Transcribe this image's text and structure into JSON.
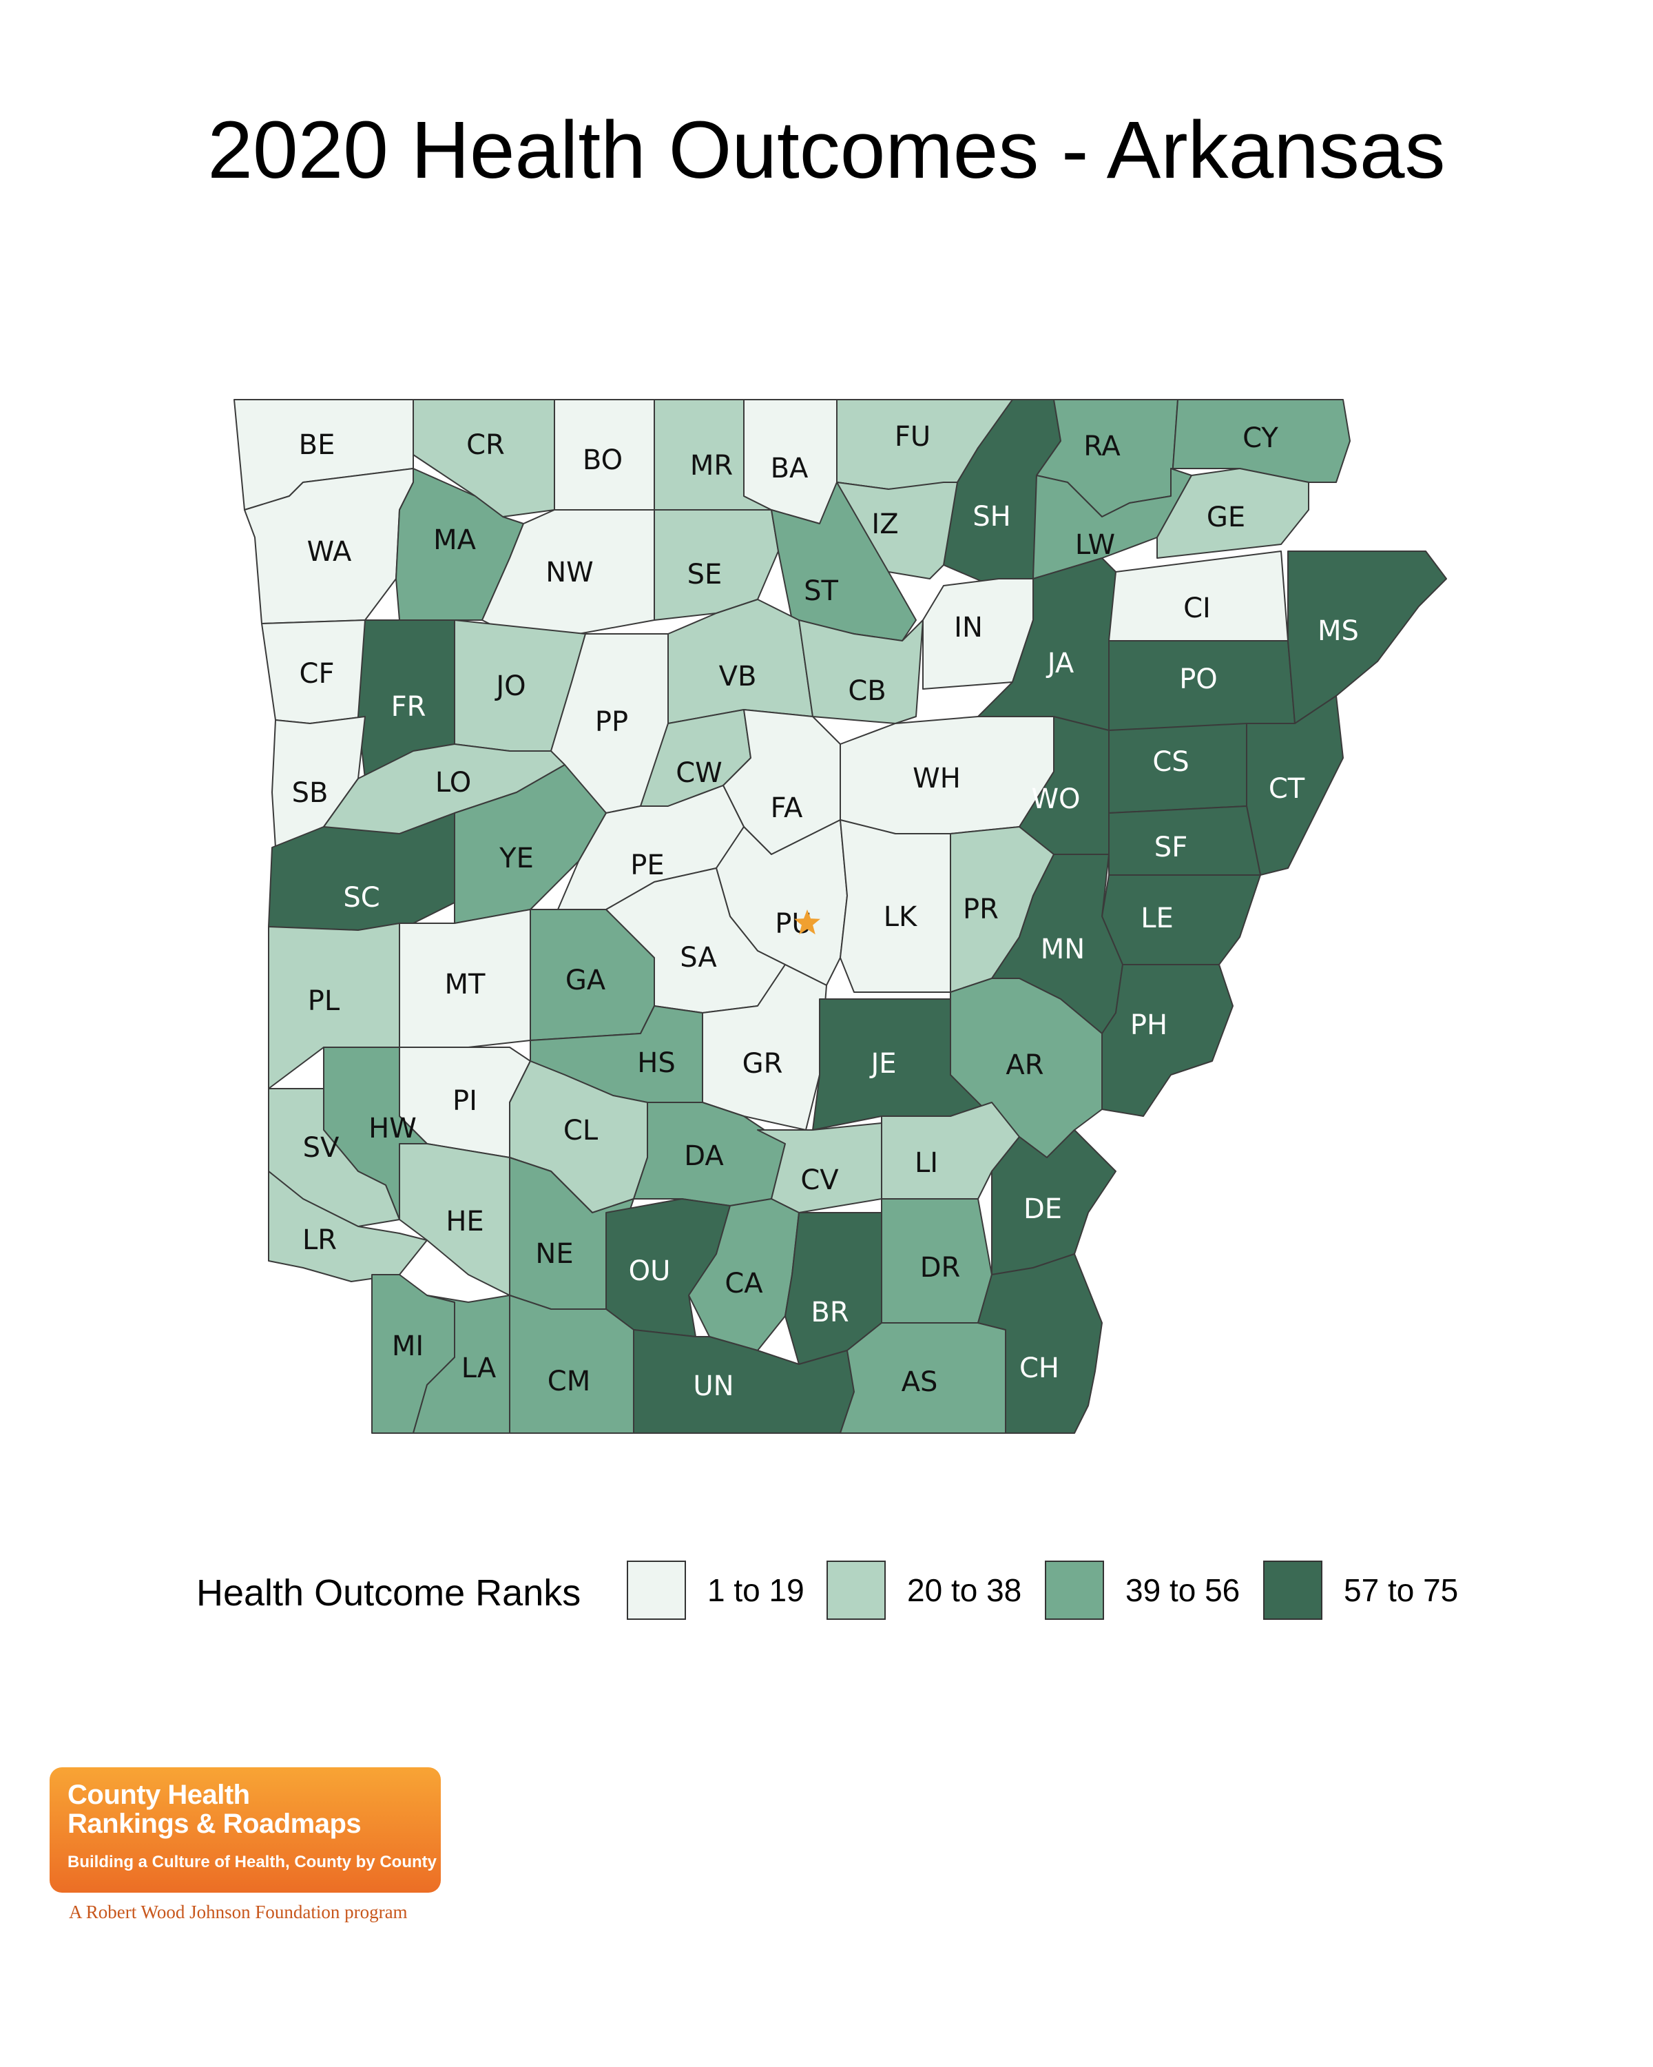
{
  "title": "2020 Health Outcomes - Arkansas",
  "colors": {
    "rank_1_19": "#eef5f1",
    "rank_20_38": "#b3d4c2",
    "rank_39_56": "#74ab90",
    "rank_57_75": "#3b6a54"
  },
  "legend": {
    "title": "Health Outcome Ranks",
    "items": [
      {
        "label": "1 to 19",
        "color": "#eef5f1"
      },
      {
        "label": "20 to 38",
        "color": "#b3d4c2"
      },
      {
        "label": "39 to 56",
        "color": "#74ab90"
      },
      {
        "label": "57 to 75",
        "color": "#3b6a54"
      }
    ]
  },
  "capital_marker": {
    "county": "PU",
    "icon": "star-icon",
    "color": "#f0a030"
  },
  "counties": [
    {
      "code": "BE",
      "category": 1
    },
    {
      "code": "CR",
      "category": 2
    },
    {
      "code": "BO",
      "category": 1
    },
    {
      "code": "MR",
      "category": 2
    },
    {
      "code": "BA",
      "category": 1
    },
    {
      "code": "FU",
      "category": 2
    },
    {
      "code": "SH",
      "category": 4
    },
    {
      "code": "RA",
      "category": 3
    },
    {
      "code": "CY",
      "category": 3
    },
    {
      "code": "WA",
      "category": 1
    },
    {
      "code": "MA",
      "category": 3
    },
    {
      "code": "NW",
      "category": 1
    },
    {
      "code": "SE",
      "category": 2
    },
    {
      "code": "ST",
      "category": 3
    },
    {
      "code": "IZ",
      "category": 2
    },
    {
      "code": "LW",
      "category": 3
    },
    {
      "code": "GE",
      "category": 2
    },
    {
      "code": "CF",
      "category": 1
    },
    {
      "code": "FR",
      "category": 4
    },
    {
      "code": "JO",
      "category": 2
    },
    {
      "code": "PP",
      "category": 1
    },
    {
      "code": "VB",
      "category": 2
    },
    {
      "code": "CB",
      "category": 2
    },
    {
      "code": "IN",
      "category": 1
    },
    {
      "code": "JA",
      "category": 4
    },
    {
      "code": "CI",
      "category": 1
    },
    {
      "code": "PO",
      "category": 4
    },
    {
      "code": "MS",
      "category": 4
    },
    {
      "code": "SB",
      "category": 1
    },
    {
      "code": "LO",
      "category": 2
    },
    {
      "code": "CW",
      "category": 2
    },
    {
      "code": "FA",
      "category": 1
    },
    {
      "code": "WH",
      "category": 1
    },
    {
      "code": "WO",
      "category": 4
    },
    {
      "code": "CS",
      "category": 4
    },
    {
      "code": "CT",
      "category": 4
    },
    {
      "code": "SC",
      "category": 4
    },
    {
      "code": "YE",
      "category": 3
    },
    {
      "code": "PE",
      "category": 1
    },
    {
      "code": "PU",
      "category": 1
    },
    {
      "code": "LK",
      "category": 1
    },
    {
      "code": "PR",
      "category": 2
    },
    {
      "code": "SF",
      "category": 4
    },
    {
      "code": "LE",
      "category": 4
    },
    {
      "code": "MN",
      "category": 4
    },
    {
      "code": "PL",
      "category": 2
    },
    {
      "code": "MT",
      "category": 1
    },
    {
      "code": "GA",
      "category": 3
    },
    {
      "code": "SA",
      "category": 1
    },
    {
      "code": "PH",
      "category": 4
    },
    {
      "code": "GR",
      "category": 1
    },
    {
      "code": "JE",
      "category": 4
    },
    {
      "code": "AR",
      "category": 3
    },
    {
      "code": "HS",
      "category": 3
    },
    {
      "code": "PI",
      "category": 1
    },
    {
      "code": "HW",
      "category": 3
    },
    {
      "code": "SV",
      "category": 2
    },
    {
      "code": "CL",
      "category": 2
    },
    {
      "code": "DA",
      "category": 3
    },
    {
      "code": "CV",
      "category": 2
    },
    {
      "code": "LI",
      "category": 2
    },
    {
      "code": "DE",
      "category": 4
    },
    {
      "code": "HE",
      "category": 2
    },
    {
      "code": "NE",
      "category": 3
    },
    {
      "code": "LR",
      "category": 2
    },
    {
      "code": "OU",
      "category": 4
    },
    {
      "code": "CA",
      "category": 3
    },
    {
      "code": "DR",
      "category": 3
    },
    {
      "code": "BR",
      "category": 4
    },
    {
      "code": "MI",
      "category": 3
    },
    {
      "code": "LA",
      "category": 3
    },
    {
      "code": "CM",
      "category": 3
    },
    {
      "code": "UN",
      "category": 4
    },
    {
      "code": "AS",
      "category": 3
    },
    {
      "code": "CH",
      "category": 4
    }
  ],
  "logo": {
    "line1": "County Health",
    "line2": "Rankings & Roadmaps",
    "tagline": "Building a Culture of Health, County by County",
    "sub": "A Robert Wood Johnson Foundation program"
  }
}
